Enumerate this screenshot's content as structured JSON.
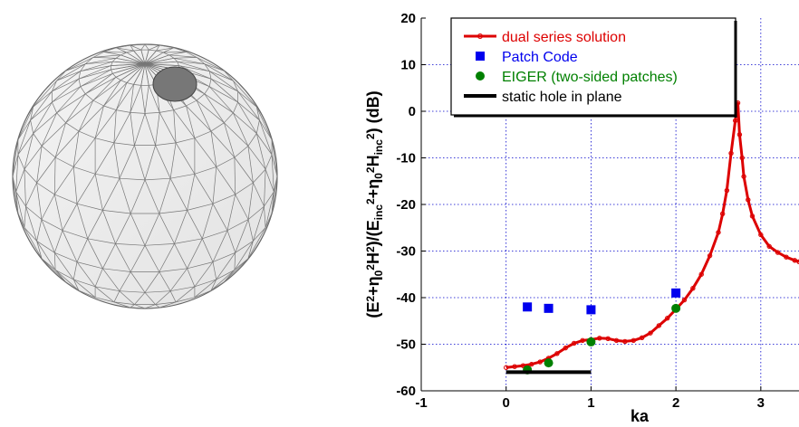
{
  "chart_data": {
    "type": "line",
    "xlabel": "ka",
    "ylabel": {
      "parts": [
        {
          "t": "(E"
        },
        {
          "t": "2",
          "s": "sup"
        },
        {
          "t": "+η"
        },
        {
          "t": "0",
          "s": "sub"
        },
        {
          "t": "2",
          "s": "sup"
        },
        {
          "t": "H"
        },
        {
          "t": "2",
          "s": "sup"
        },
        {
          "t": ")/(E"
        },
        {
          "t": "inc",
          "s": "sub"
        },
        {
          "t": "2",
          "s": "sup"
        },
        {
          "t": "+η"
        },
        {
          "t": "0",
          "s": "sub"
        },
        {
          "t": "2",
          "s": "sup"
        },
        {
          "t": "H"
        },
        {
          "t": "inc",
          "s": "sub"
        },
        {
          "t": "2",
          "s": "sup"
        },
        {
          "t": ") (dB)"
        }
      ]
    },
    "xlim": [
      -1,
      3.45
    ],
    "ylim": [
      -60,
      20
    ],
    "xticks": [
      "-1",
      "0",
      "1",
      "2",
      "3"
    ],
    "yticks": [
      "-60",
      "-50",
      "-40",
      "-30",
      "-20",
      "-10",
      "0",
      "10",
      "20"
    ],
    "grid": true,
    "legend_position": "top-left",
    "series": [
      {
        "name": "dual series solution",
        "style": "line-with-circles",
        "color": "#dd0000",
        "x": [
          0.0,
          0.1,
          0.2,
          0.3,
          0.4,
          0.5,
          0.6,
          0.7,
          0.8,
          0.9,
          1.0,
          1.1,
          1.2,
          1.3,
          1.4,
          1.5,
          1.6,
          1.7,
          1.8,
          1.9,
          2.0,
          2.1,
          2.2,
          2.3,
          2.4,
          2.5,
          2.55,
          2.6,
          2.65,
          2.7,
          2.72,
          2.73,
          2.75,
          2.78,
          2.8,
          2.85,
          2.9,
          3.0,
          3.1,
          3.2,
          3.3,
          3.4,
          3.45
        ],
        "y": [
          -55.0,
          -54.8,
          -54.6,
          -54.3,
          -53.8,
          -53.0,
          -52.0,
          -50.8,
          -49.8,
          -49.2,
          -49.0,
          -48.7,
          -48.8,
          -49.2,
          -49.4,
          -49.2,
          -48.6,
          -47.6,
          -46.0,
          -44.4,
          -42.5,
          -40.5,
          -38.0,
          -35.0,
          -31.0,
          -26.0,
          -22.0,
          -17.0,
          -9.0,
          -2.0,
          0.5,
          1.8,
          -5.0,
          -10.0,
          -14.0,
          -19.0,
          -22.5,
          -26.5,
          -29.0,
          -30.3,
          -31.3,
          -32.0,
          -32.3
        ]
      },
      {
        "name": "Patch Code",
        "style": "square-markers",
        "color": "#0000ee",
        "x": [
          0.25,
          0.5,
          1.0,
          2.0
        ],
        "y": [
          -42.0,
          -42.3,
          -42.6,
          -39.0
        ]
      },
      {
        "name": "EIGER (two-sided patches)",
        "style": "circle-markers",
        "color": "#008000",
        "x": [
          0.25,
          0.5,
          1.0,
          2.0
        ],
        "y": [
          -55.5,
          -54.0,
          -49.5,
          -42.3
        ]
      },
      {
        "name": "static hole in plane",
        "style": "line",
        "color": "#000000",
        "x": [
          0.0,
          1.0
        ],
        "y": [
          -56.0,
          -56.0
        ]
      }
    ]
  }
}
